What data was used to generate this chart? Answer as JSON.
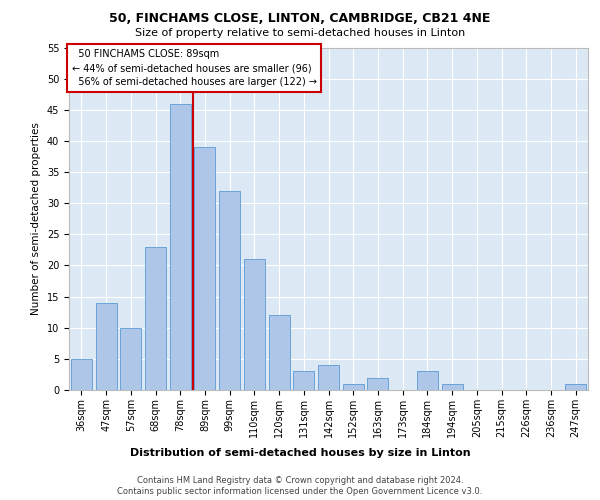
{
  "title_line1": "50, FINCHAMS CLOSE, LINTON, CAMBRIDGE, CB21 4NE",
  "title_line2": "Size of property relative to semi-detached houses in Linton",
  "xlabel": "Distribution of semi-detached houses by size in Linton",
  "ylabel": "Number of semi-detached properties",
  "categories": [
    "36sqm",
    "47sqm",
    "57sqm",
    "68sqm",
    "78sqm",
    "89sqm",
    "99sqm",
    "110sqm",
    "120sqm",
    "131sqm",
    "142sqm",
    "152sqm",
    "163sqm",
    "173sqm",
    "184sqm",
    "194sqm",
    "205sqm",
    "215sqm",
    "226sqm",
    "236sqm",
    "247sqm"
  ],
  "values": [
    5,
    14,
    10,
    23,
    46,
    39,
    32,
    21,
    12,
    3,
    4,
    1,
    2,
    0,
    3,
    1,
    0,
    0,
    0,
    0,
    1
  ],
  "bar_color": "#aec6e8",
  "bar_edge_color": "#5b9bd5",
  "pct_smaller": 44,
  "count_smaller": 96,
  "pct_larger": 56,
  "count_larger": 122,
  "annotation_label": "50 FINCHAMS CLOSE: 89sqm",
  "vline_color": "#cc0000",
  "vline_index": 4,
  "ylim": [
    0,
    55
  ],
  "yticks": [
    0,
    5,
    10,
    15,
    20,
    25,
    30,
    35,
    40,
    45,
    50,
    55
  ],
  "footer_line1": "Contains HM Land Registry data © Crown copyright and database right 2024.",
  "footer_line2": "Contains public sector information licensed under the Open Government Licence v3.0.",
  "background_color": "#dce9f5",
  "grid_color": "#ffffff",
  "title_fontsize": 9,
  "subtitle_fontsize": 8,
  "ylabel_fontsize": 7.5,
  "xlabel_fontsize": 8,
  "tick_fontsize": 7,
  "ann_fontsize": 7,
  "footer_fontsize": 6
}
